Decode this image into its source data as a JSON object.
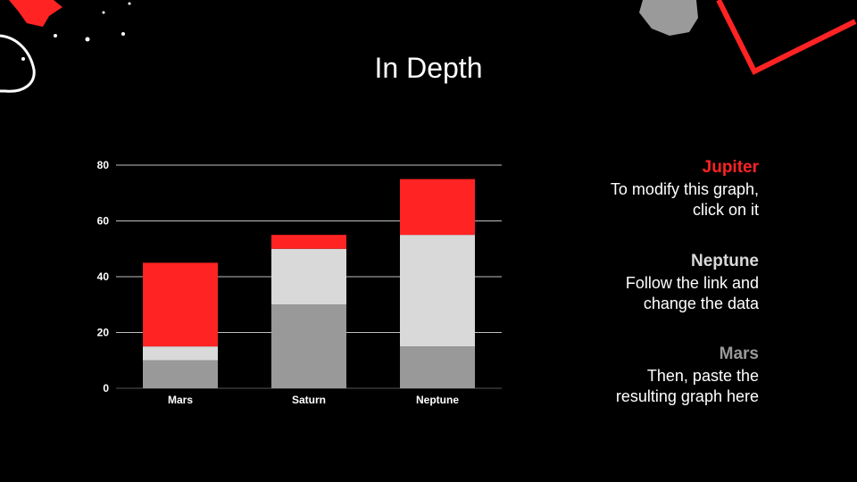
{
  "slide": {
    "title": "In Depth"
  },
  "colors": {
    "background": "#000000",
    "jupiter": "#ff2323",
    "neptune": "#d9d9d9",
    "mars": "#999999",
    "accent": "#ff2323"
  },
  "chart_data": {
    "type": "bar",
    "stacked": true,
    "categories": [
      "Mars",
      "Saturn",
      "Neptune"
    ],
    "series": [
      {
        "name": "Mars",
        "color": "#999999",
        "values": [
          10,
          30,
          15
        ]
      },
      {
        "name": "Neptune",
        "color": "#d9d9d9",
        "values": [
          5,
          20,
          40
        ]
      },
      {
        "name": "Jupiter",
        "color": "#ff2323",
        "values": [
          30,
          5,
          20
        ]
      }
    ],
    "yticks": [
      "0",
      "20",
      "40",
      "60",
      "80"
    ],
    "ylim": [
      0,
      80
    ],
    "grid": true,
    "title": "",
    "xlabel": "",
    "ylabel": ""
  },
  "legend": [
    {
      "title": "Jupiter",
      "color": "#ff2323",
      "line1": "To modify this graph,",
      "line2": "click on it"
    },
    {
      "title": "Neptune",
      "color": "#d9d9d9",
      "line1": "Follow the link and",
      "line2": "change the data"
    },
    {
      "title": "Mars",
      "color": "#999999",
      "line1": "Then, paste the",
      "line2": "resulting graph here"
    }
  ]
}
